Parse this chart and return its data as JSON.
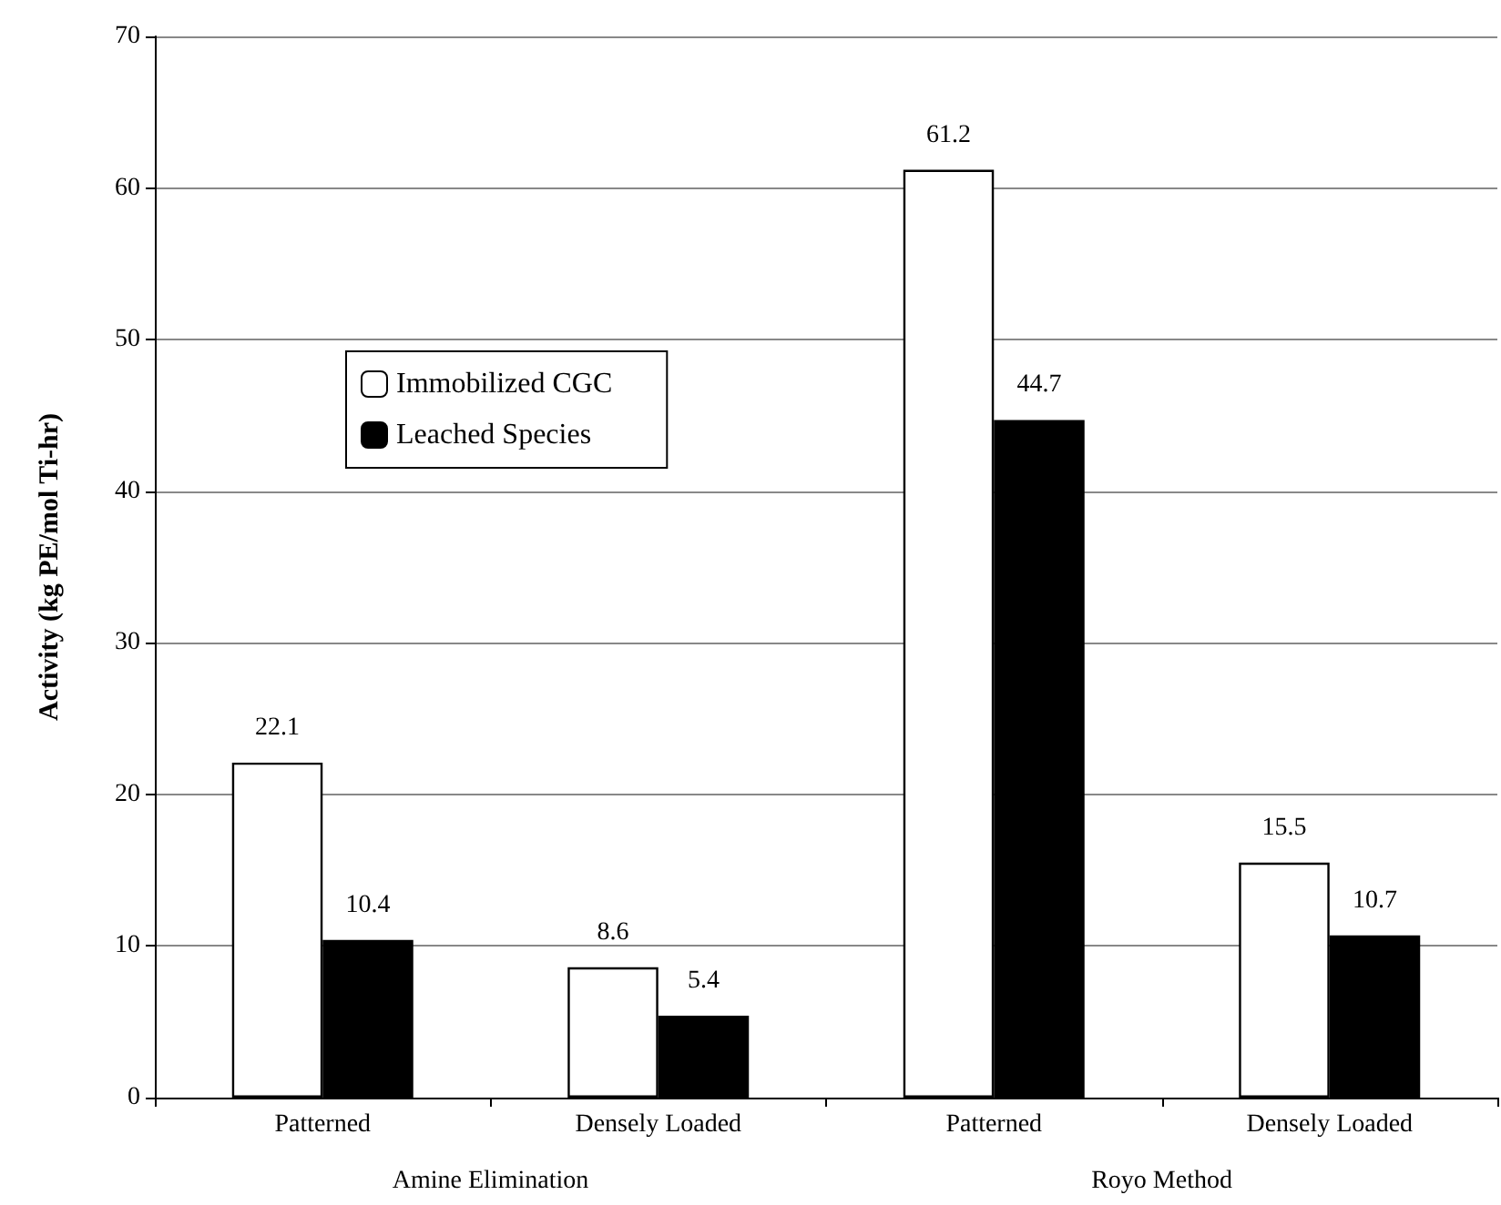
{
  "chart_data": {
    "type": "bar",
    "ylabel": "Activity (kg PE/mol Ti-hr)",
    "categories": [
      "Patterned",
      "Densely Loaded",
      "Patterned",
      "Densely Loaded"
    ],
    "series": [
      {
        "name": "Immobilized CGC",
        "color": "#ffffff",
        "values": [
          22.1,
          8.6,
          61.2,
          15.5
        ]
      },
      {
        "name": "Leached Species",
        "color": "#000000",
        "values": [
          10.4,
          5.4,
          44.7,
          10.7
        ]
      }
    ],
    "ylim": [
      0,
      70
    ],
    "yticks": [
      0,
      10,
      20,
      30,
      40,
      50,
      60,
      70
    ],
    "grid": "y",
    "legend": "left",
    "data_labels": true,
    "annotations": [
      "Amine Elimination",
      "Royo Method"
    ]
  }
}
